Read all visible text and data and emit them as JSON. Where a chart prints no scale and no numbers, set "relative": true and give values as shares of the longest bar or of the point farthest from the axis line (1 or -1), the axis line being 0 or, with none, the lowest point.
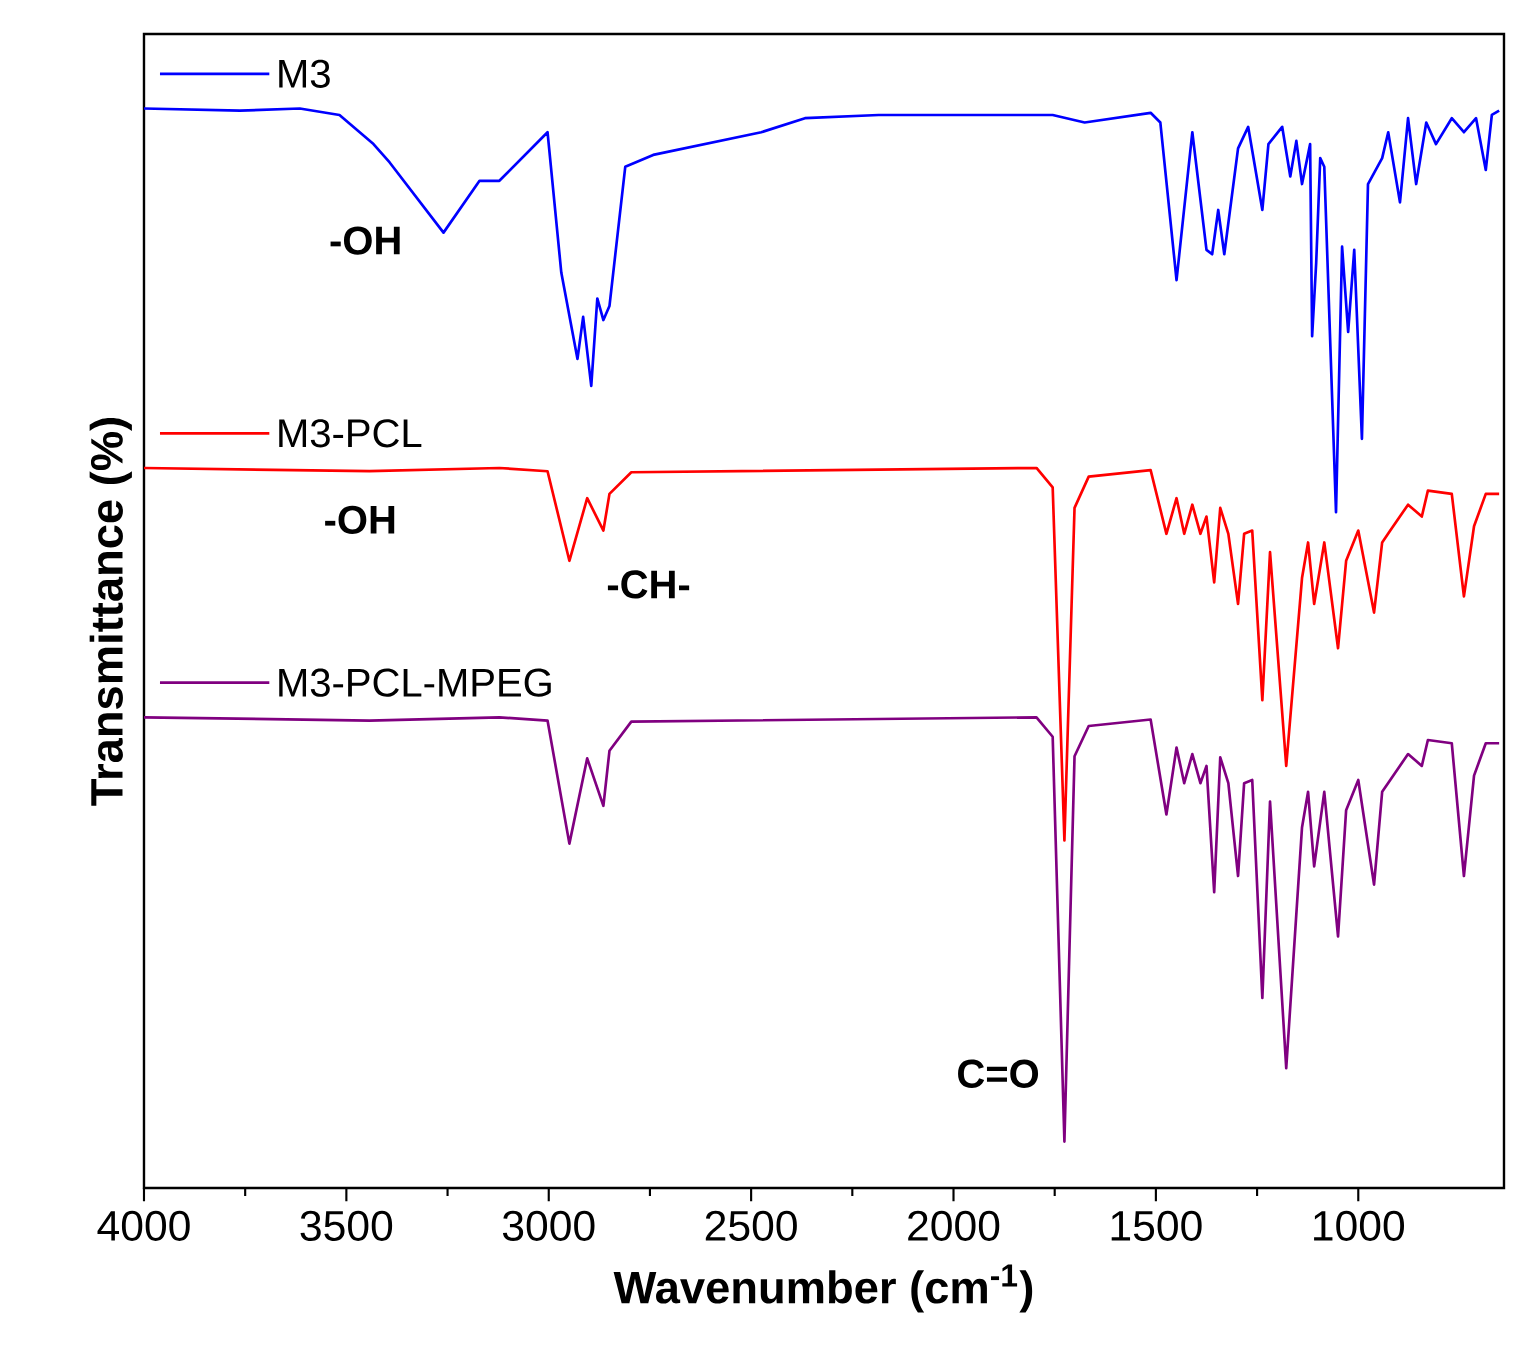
{
  "chart_data": {
    "type": "line",
    "relative": true,
    "legend": "top left",
    "xlabel": "Wavenumber (cm$^{-1}$)",
    "ylabel": "Transmittance (%)",
    "xlim": [
      4000,
      640
    ],
    "xticks": [
      4000,
      3500,
      3000,
      2500,
      2000,
      1500,
      1000
    ],
    "annotations": [
      "-OH",
      "-OH",
      "-CH-",
      "C=O"
    ],
    "series": [
      {
        "name": "M3",
        "color": "#0000ff",
        "x": [
          4000,
          3763,
          3615,
          3517,
          3433,
          3393,
          3260,
          3171,
          3122,
          3003,
          2969,
          2929,
          2915,
          2895,
          2880,
          2865,
          2850,
          2811,
          2742,
          2475,
          2367,
          2185,
          1755,
          1676,
          1513,
          1489,
          1449,
          1410,
          1375,
          1361,
          1346,
          1331,
          1297,
          1272,
          1237,
          1222,
          1188,
          1168,
          1153,
          1139,
          1119,
          1114,
          1104,
          1094,
          1084,
          1055,
          1040,
          1025,
          1010,
          991,
          976,
          941,
          926,
          897,
          877,
          857,
          832,
          808,
          769,
          739,
          709,
          685,
          670,
          652
        ],
        "values": [
          1.0,
          0.998,
          1.0,
          0.994,
          0.967,
          0.95,
          0.885,
          0.933,
          0.933,
          0.978,
          0.848,
          0.768,
          0.807,
          0.743,
          0.824,
          0.804,
          0.817,
          0.946,
          0.957,
          0.978,
          0.991,
          0.994,
          0.994,
          0.987,
          0.996,
          0.987,
          0.841,
          0.978,
          0.869,
          0.865,
          0.906,
          0.865,
          0.963,
          0.983,
          0.906,
          0.967,
          0.983,
          0.937,
          0.97,
          0.93,
          0.967,
          0.789,
          0.857,
          0.954,
          0.946,
          0.626,
          0.872,
          0.793,
          0.869,
          0.694,
          0.93,
          0.954,
          0.978,
          0.913,
          0.991,
          0.93,
          0.987,
          0.967,
          0.991,
          0.978,
          0.991,
          0.943,
          0.994,
          0.998
        ]
      },
      {
        "name": "M3-PCL",
        "color": "#ff0000",
        "x": [
          4000,
          3443,
          3122,
          3003,
          2949,
          2905,
          2865,
          2850,
          2796,
          1795,
          1755,
          1726,
          1701,
          1666,
          1513,
          1474,
          1449,
          1430,
          1410,
          1390,
          1375,
          1356,
          1341,
          1321,
          1297,
          1282,
          1262,
          1237,
          1218,
          1178,
          1139,
          1124,
          1109,
          1084,
          1050,
          1030,
          1000,
          961,
          941,
          921,
          877,
          843,
          828,
          769,
          739,
          714,
          685,
          652
        ],
        "values": [
          0.667,
          0.664,
          0.667,
          0.664,
          0.581,
          0.639,
          0.609,
          0.643,
          0.663,
          0.667,
          0.649,
          0.322,
          0.63,
          0.659,
          0.665,
          0.606,
          0.639,
          0.606,
          0.633,
          0.606,
          0.622,
          0.561,
          0.63,
          0.606,
          0.541,
          0.606,
          0.609,
          0.452,
          0.589,
          0.391,
          0.565,
          0.598,
          0.541,
          0.598,
          0.5,
          0.581,
          0.609,
          0.533,
          0.598,
          0.609,
          0.633,
          0.622,
          0.646,
          0.643,
          0.548,
          0.613,
          0.643,
          0.643
        ]
      },
      {
        "name": "M3-PCL-MPEG",
        "color": "#800080",
        "x": [
          4000,
          3443,
          3122,
          3003,
          2949,
          2905,
          2865,
          2850,
          2796,
          1795,
          1755,
          1726,
          1701,
          1666,
          1513,
          1474,
          1449,
          1430,
          1410,
          1390,
          1375,
          1356,
          1341,
          1321,
          1297,
          1282,
          1262,
          1237,
          1218,
          1178,
          1139,
          1124,
          1109,
          1084,
          1050,
          1030,
          1000,
          961,
          941,
          921,
          877,
          843,
          828,
          769,
          739,
          714,
          685,
          652
        ],
        "values": [
          0.436,
          0.433,
          0.436,
          0.433,
          0.319,
          0.398,
          0.354,
          0.405,
          0.432,
          0.436,
          0.418,
          0.043,
          0.4,
          0.428,
          0.434,
          0.346,
          0.408,
          0.375,
          0.402,
          0.375,
          0.391,
          0.274,
          0.399,
          0.375,
          0.289,
          0.375,
          0.378,
          0.176,
          0.358,
          0.111,
          0.334,
          0.367,
          0.298,
          0.367,
          0.233,
          0.35,
          0.378,
          0.281,
          0.367,
          0.378,
          0.402,
          0.391,
          0.415,
          0.412,
          0.289,
          0.382,
          0.412,
          0.412
        ]
      }
    ]
  }
}
